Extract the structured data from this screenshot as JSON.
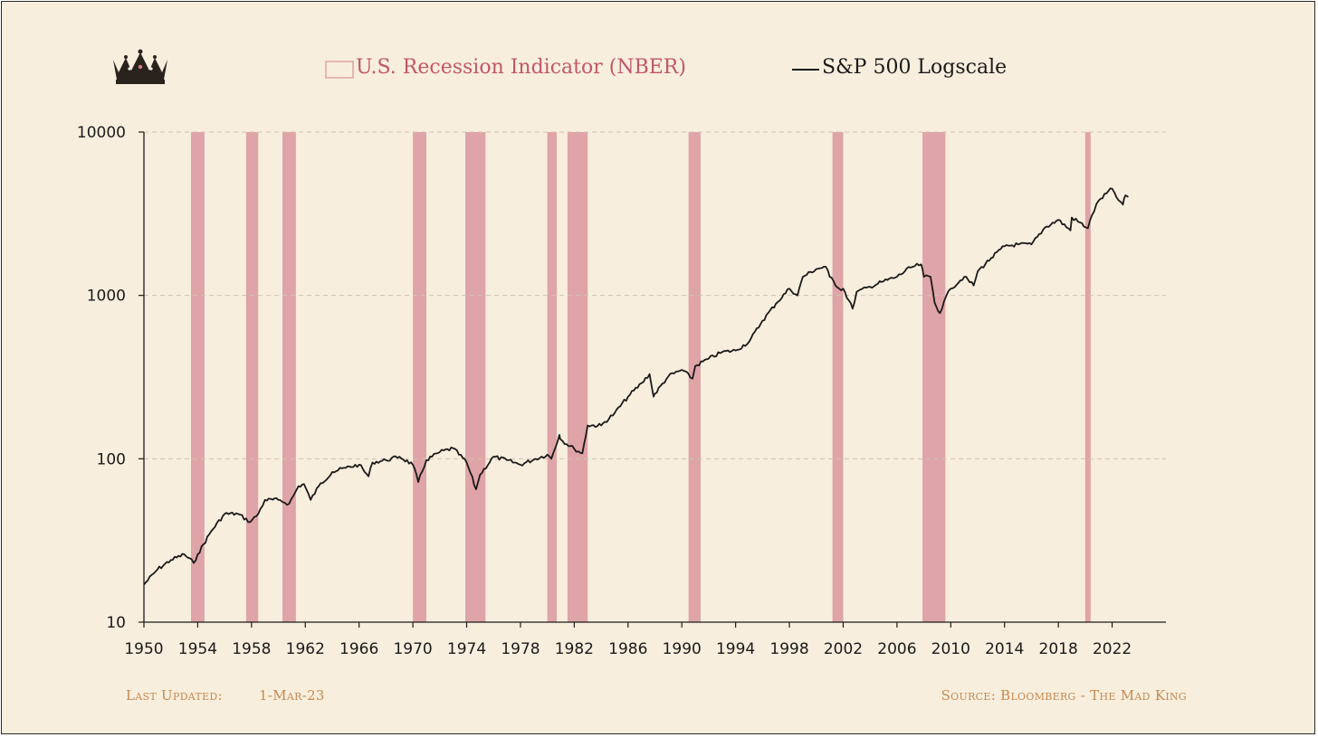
{
  "legend": {
    "recession_label": "U.S. Recession Indicator (NBER)",
    "sp500_label": "S&P 500 Logscale"
  },
  "footer": {
    "last_updated_label": "Last Updated:",
    "last_updated_value": "1-Mar-23",
    "source": "Source: Bloomberg - The Mad King"
  },
  "colors": {
    "background": "#f8eedd",
    "recession": "#dfa4a7",
    "recession_text": "#c0576a",
    "line": "#1a1a1a",
    "footer_text": "#c58a4f",
    "grid": "#cfc3b3"
  },
  "icons": {
    "logo": "crown-icon"
  },
  "chart_data": {
    "type": "line",
    "y_scale": "log",
    "ylim": [
      10,
      10000
    ],
    "y_ticks": [
      10,
      100,
      1000,
      10000
    ],
    "y_tick_labels": [
      "10",
      "100",
      "1000",
      "10000"
    ],
    "xlim": [
      1950,
      2026
    ],
    "x_ticks": [
      1950,
      1954,
      1958,
      1962,
      1966,
      1970,
      1974,
      1978,
      1982,
      1986,
      1990,
      1994,
      1998,
      2002,
      2006,
      2010,
      2014,
      2018,
      2022
    ],
    "x_tick_labels": [
      "1950",
      "1954",
      "1958",
      "1962",
      "1966",
      "1970",
      "1974",
      "1978",
      "1982",
      "1986",
      "1990",
      "1994",
      "1998",
      "2002",
      "2006",
      "2010",
      "2014",
      "2018",
      "2022"
    ],
    "grid": "horizontal dashed",
    "legend_position": "top",
    "recessions": [
      [
        1953.5,
        1954.5
      ],
      [
        1957.6,
        1958.5
      ],
      [
        1960.3,
        1961.3
      ],
      [
        1970.0,
        1971.0
      ],
      [
        1973.9,
        1975.4
      ],
      [
        1980.0,
        1980.7
      ],
      [
        1981.5,
        1983.0
      ],
      [
        1990.5,
        1991.4
      ],
      [
        2001.2,
        2002.0
      ],
      [
        2007.9,
        2009.6
      ],
      [
        2020.0,
        2020.4
      ]
    ],
    "series": [
      {
        "name": "S&P 500 Logscale",
        "x": [
          1950,
          1951,
          1952,
          1953,
          1953.7,
          1954,
          1955,
          1956,
          1957,
          1957.9,
          1958.5,
          1959,
          1960,
          1960.8,
          1961.5,
          1961.9,
          1962.4,
          1963,
          1964,
          1965,
          1966,
          1966.7,
          1967,
          1968,
          1969,
          1970,
          1970.4,
          1971,
          1972,
          1973,
          1974,
          1974.7,
          1975,
          1976,
          1977,
          1978,
          1979,
          1980,
          1980.3,
          1980.9,
          1981,
          1982,
          1982.6,
          1983,
          1984,
          1985,
          1986,
          1987,
          1987.6,
          1987.9,
          1988,
          1989,
          1990,
          1990.8,
          1991,
          1992,
          1993,
          1994,
          1995,
          1996,
          1997,
          1998,
          1998.6,
          1999,
          2000,
          2000.7,
          2001,
          2001.7,
          2002,
          2002.7,
          2003,
          2004,
          2005,
          2006,
          2007,
          2007.8,
          2008,
          2008.5,
          2008.8,
          2009.2,
          2009.5,
          2010,
          2011,
          2011.7,
          2012,
          2013,
          2014,
          2015,
          2016,
          2017,
          2018,
          2018.9,
          2019,
          2020.2,
          2020.5,
          2021,
          2022,
          2022.5,
          2022.8,
          2023,
          2023.2
        ],
        "y": [
          17,
          21,
          24,
          26,
          23,
          26,
          36,
          46,
          46,
          41,
          46,
          56,
          56,
          53,
          68,
          70,
          56,
          68,
          83,
          88,
          92,
          78,
          95,
          98,
          103,
          92,
          72,
          98,
          110,
          116,
          95,
          65,
          80,
          103,
          98,
          92,
          99,
          106,
          100,
          140,
          131,
          115,
          108,
          160,
          160,
          190,
          240,
          290,
          330,
          240,
          250,
          320,
          350,
          310,
          370,
          410,
          450,
          460,
          520,
          700,
          890,
          1100,
          1000,
          1300,
          1450,
          1500,
          1300,
          1100,
          1100,
          830,
          1050,
          1130,
          1220,
          1300,
          1480,
          1550,
          1300,
          1300,
          900,
          780,
          920,
          1100,
          1300,
          1150,
          1400,
          1690,
          2000,
          2050,
          2050,
          2600,
          2900,
          2500,
          3000,
          2580,
          3100,
          3800,
          4500,
          3800,
          3600,
          4100,
          4000
        ]
      }
    ]
  }
}
